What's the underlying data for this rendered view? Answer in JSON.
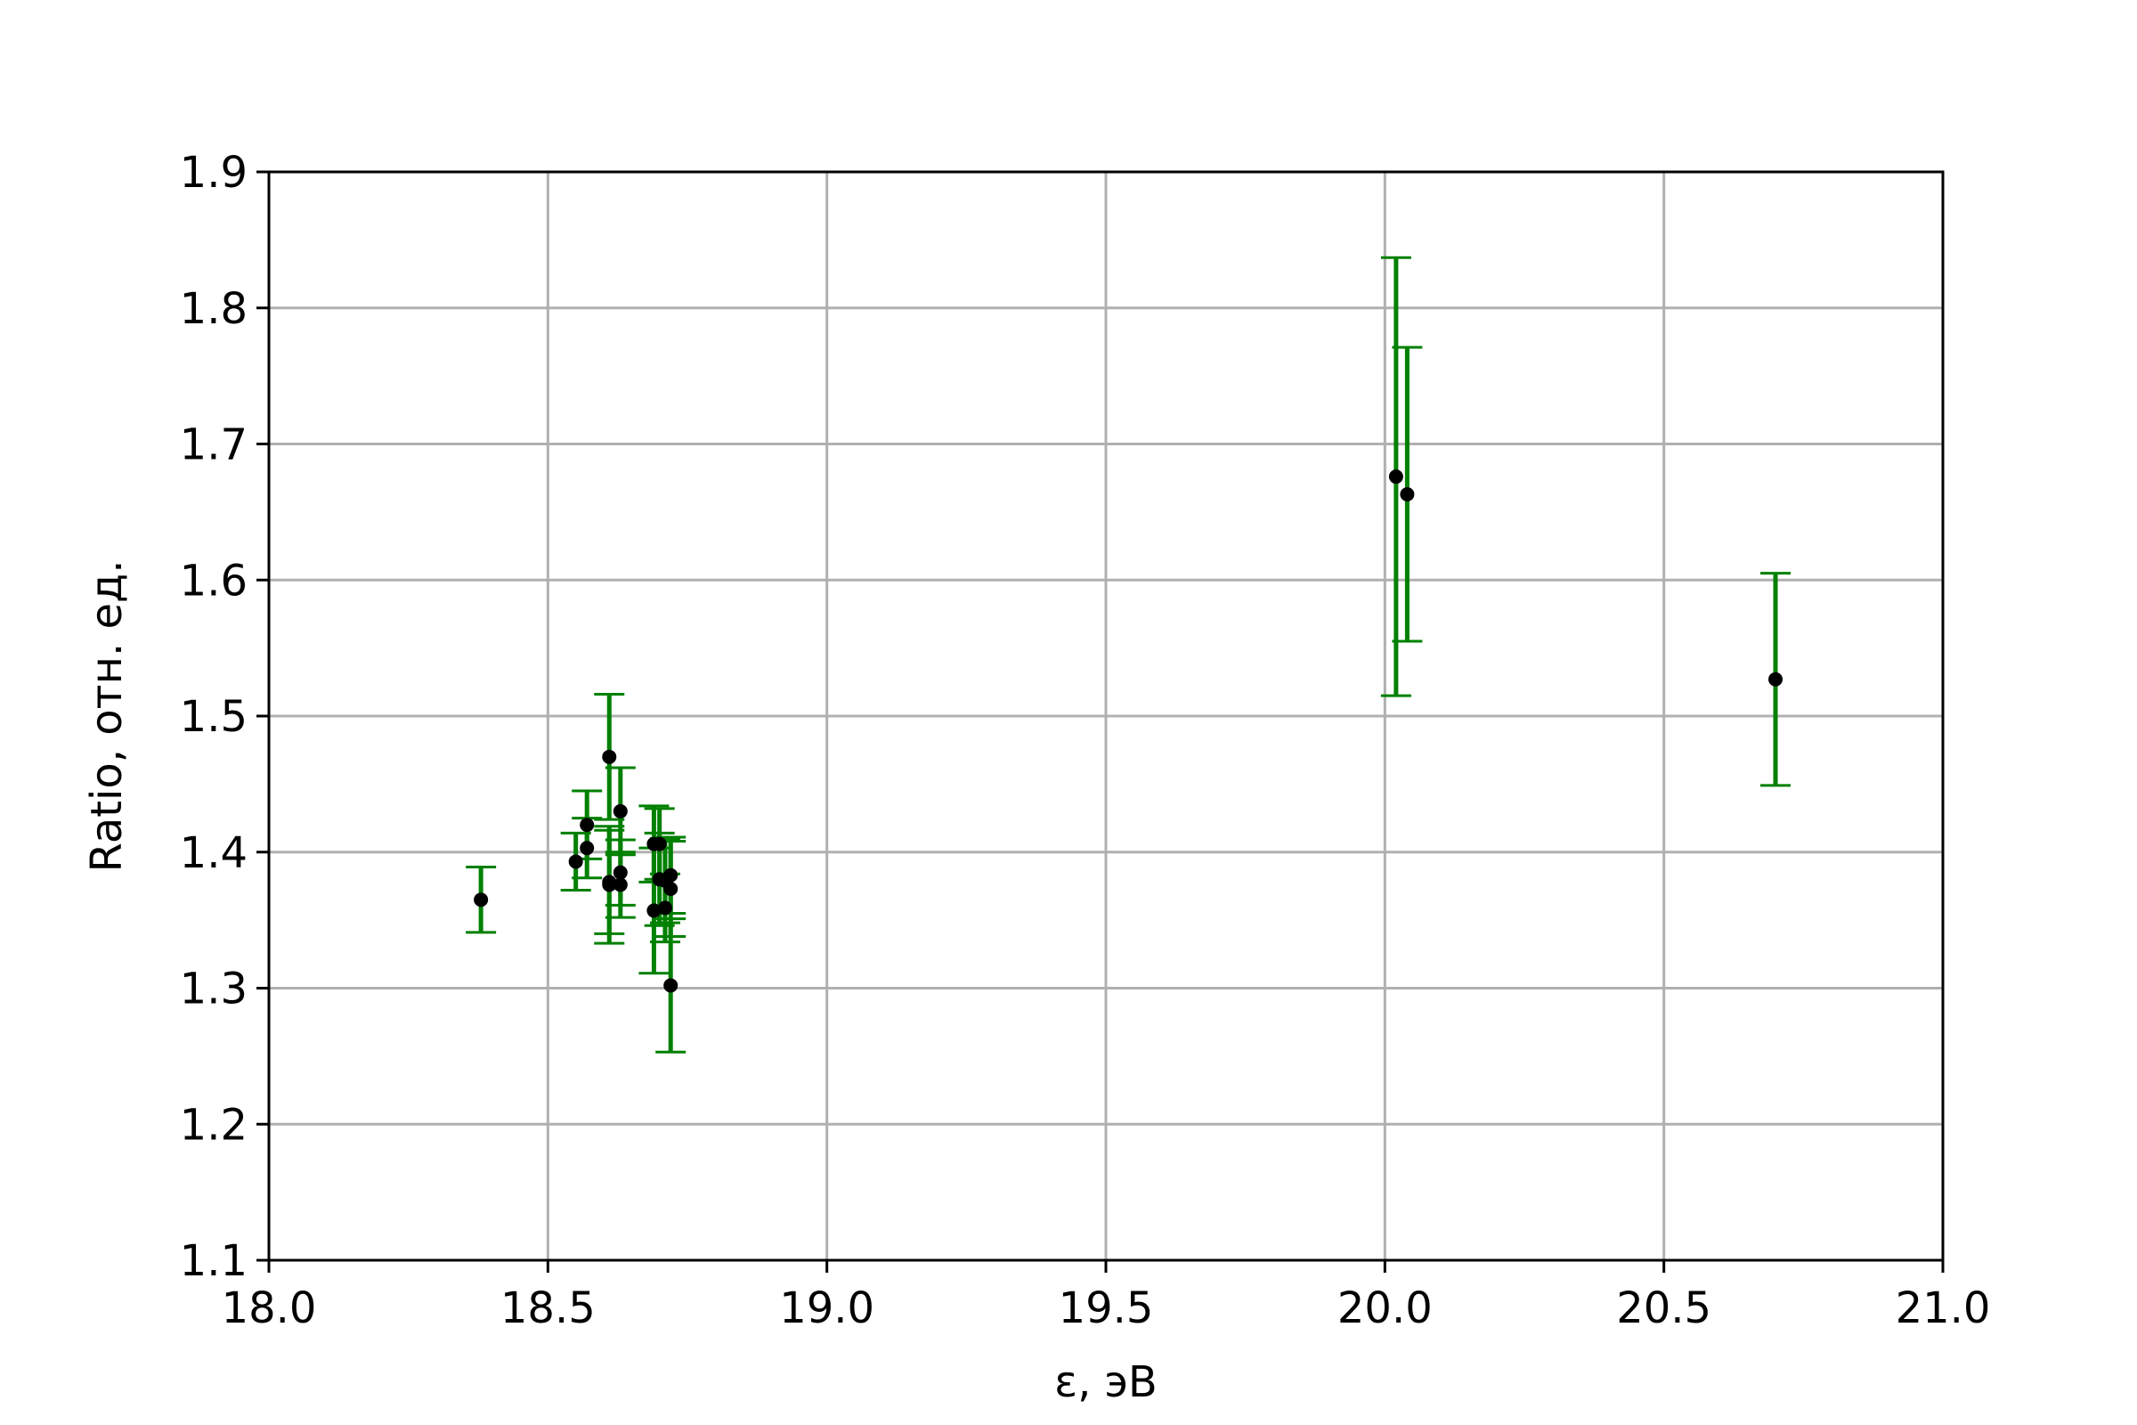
{
  "chart_data": {
    "type": "scatter",
    "title": "",
    "xlabel": "ε, эВ",
    "ylabel": "Ratio, отн. ед.",
    "xlim": [
      18.0,
      21.0
    ],
    "ylim": [
      1.1,
      1.9
    ],
    "xticks": [
      18.0,
      18.5,
      19.0,
      19.5,
      20.0,
      20.5,
      21.0
    ],
    "yticks": [
      1.1,
      1.2,
      1.3,
      1.4,
      1.5,
      1.6,
      1.7,
      1.8,
      1.9
    ],
    "xtick_labels": [
      "18.0",
      "18.5",
      "19.0",
      "19.5",
      "20.0",
      "20.5",
      "21.0"
    ],
    "ytick_labels": [
      "1.1",
      "1.2",
      "1.3",
      "1.4",
      "1.5",
      "1.6",
      "1.7",
      "1.8",
      "1.9"
    ],
    "grid": true,
    "marker_color": "#000000",
    "errorbar_color": "#008000",
    "points": [
      {
        "x": 18.38,
        "y": 1.365,
        "err": 0.024
      },
      {
        "x": 18.55,
        "y": 1.393,
        "err": 0.021
      },
      {
        "x": 18.57,
        "y": 1.42,
        "err": 0.025
      },
      {
        "x": 18.57,
        "y": 1.403,
        "err": 0.022
      },
      {
        "x": 18.61,
        "y": 1.47,
        "err": 0.046
      },
      {
        "x": 18.61,
        "y": 1.378,
        "err": 0.038
      },
      {
        "x": 18.61,
        "y": 1.376,
        "err": 0.043
      },
      {
        "x": 18.63,
        "y": 1.43,
        "err": 0.032
      },
      {
        "x": 18.63,
        "y": 1.385,
        "err": 0.024
      },
      {
        "x": 18.63,
        "y": 1.376,
        "err": 0.024
      },
      {
        "x": 18.69,
        "y": 1.406,
        "err": 0.028
      },
      {
        "x": 18.69,
        "y": 1.357,
        "err": 0.046
      },
      {
        "x": 18.7,
        "y": 1.406,
        "err": 0.026
      },
      {
        "x": 18.7,
        "y": 1.38,
        "err": 0.034
      },
      {
        "x": 18.71,
        "y": 1.379,
        "err": 0.031
      },
      {
        "x": 18.71,
        "y": 1.359,
        "err": 0.025
      },
      {
        "x": 18.72,
        "y": 1.383,
        "err": 0.028
      },
      {
        "x": 18.72,
        "y": 1.373,
        "err": 0.035
      },
      {
        "x": 18.72,
        "y": 1.302,
        "err": 0.049
      },
      {
        "x": 20.02,
        "y": 1.676,
        "err": 0.161
      },
      {
        "x": 20.04,
        "y": 1.663,
        "err": 0.108
      },
      {
        "x": 20.7,
        "y": 1.527,
        "err": 0.078
      }
    ]
  }
}
